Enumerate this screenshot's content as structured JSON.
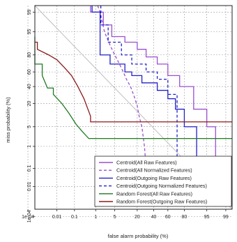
{
  "chart_data": {
    "type": "line",
    "title": "",
    "xlabel": "false alarm probability (%)",
    "ylabel": "miss probability (%)",
    "scale": "normal-deviate (DET)",
    "grid": true,
    "x_ticks": [
      "1e-04",
      "0.01",
      "0.1",
      "1",
      "5",
      "20",
      "40",
      "60",
      "80",
      "95",
      "99"
    ],
    "y_ticks": [
      "99",
      "95",
      "80",
      "60",
      "40",
      "20",
      "5",
      "1",
      "0.1",
      "0.01",
      "1e-04"
    ],
    "legend_position": "bottom-right",
    "diagonal_reference": true,
    "series": [
      {
        "name": "Centroid(All Raw Features)",
        "color": "#9b4fd0",
        "dash": "solid",
        "x": [
          0.6,
          0.6,
          2,
          2,
          4,
          4,
          10,
          10,
          20,
          20,
          30,
          30,
          45,
          45,
          60,
          60,
          75,
          75,
          88,
          88,
          95,
          95,
          97.5,
          97.5
        ],
        "y": [
          99.99,
          99,
          99,
          97,
          97,
          93,
          93,
          90,
          90,
          85,
          85,
          78,
          78,
          70,
          70,
          55,
          55,
          40,
          40,
          15,
          15,
          5,
          5,
          0.0005
        ]
      },
      {
        "name": "Centroid(All Normalized Features)",
        "color": "#9b4fd0",
        "dash": "dashed",
        "x": [
          1.2,
          1.5,
          2.2,
          3.5,
          5,
          7,
          9,
          11,
          14,
          17,
          20,
          22,
          25,
          28,
          30,
          30
        ],
        "y": [
          99.99,
          99,
          95,
          88,
          80,
          70,
          60,
          50,
          40,
          28,
          18,
          10,
          5,
          1,
          0.1,
          0.0005
        ]
      },
      {
        "name": "Centroid(Outgoing Raw Features)",
        "color": "#2121c8",
        "dash": "solid",
        "x": [
          0.7,
          0.7,
          1.5,
          1.5,
          3.5,
          3.5,
          10,
          10,
          15,
          15,
          25,
          25,
          45,
          45,
          60,
          60,
          70,
          70,
          80,
          80,
          90,
          90
        ],
        "y": [
          99.99,
          99,
          99,
          80,
          80,
          70,
          70,
          60,
          60,
          55,
          55,
          45,
          45,
          35,
          35,
          25,
          25,
          15,
          15,
          5,
          5,
          0.0005
        ]
      },
      {
        "name": "Centroid(Outgoing Normalized Features)",
        "color": "#2121c8",
        "dash": "dashed",
        "x": [
          1.6,
          1.6,
          3,
          3,
          8,
          8,
          15,
          15,
          30,
          30,
          45,
          45,
          60,
          60,
          72,
          72
        ],
        "y": [
          99.99,
          97,
          97,
          90,
          90,
          80,
          80,
          70,
          70,
          60,
          60,
          50,
          50,
          30,
          30,
          0.0005
        ]
      },
      {
        "name": "Random Forest(All Raw Features)",
        "color": "#1e7a1e",
        "dash": "solid",
        "x": [
          2e-06,
          0.00016,
          0.00016,
          0.0011,
          0.0011,
          0.0025,
          0.006,
          0.006,
          0.02,
          0.05,
          0.12,
          0.25,
          0.5,
          0.5,
          99.99
        ],
        "y": [
          93,
          93,
          70,
          70,
          55,
          38,
          38,
          30,
          20,
          12,
          6,
          3.5,
          2,
          2,
          2
        ]
      },
      {
        "name": "Random Forest(Outgoing Raw Features)",
        "color": "#8b1a1a",
        "dash": "solid",
        "x": [
          2e-06,
          0.0005,
          0.0005,
          0.003,
          0.01,
          0.03,
          0.07,
          0.15,
          0.3,
          0.6,
          0.6,
          99.99
        ],
        "y": [
          90,
          90,
          85,
          80,
          75,
          65,
          55,
          40,
          25,
          10,
          7,
          7
        ]
      }
    ]
  }
}
